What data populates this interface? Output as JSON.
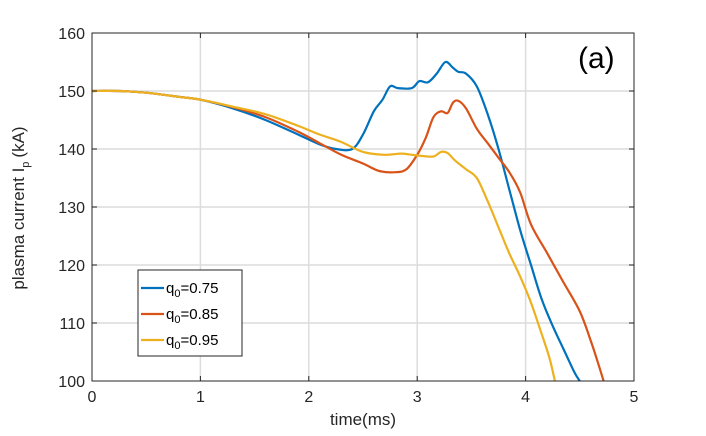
{
  "chart_data": {
    "type": "line",
    "panel_label": "(a)",
    "xlabel": "time(ms)",
    "ylabel_main": "plasma current I",
    "ylabel_sub": "p",
    "ylabel_unit": "(kA)",
    "xlim": [
      0,
      5
    ],
    "ylim": [
      100,
      160
    ],
    "x_ticks": [
      0,
      1,
      2,
      3,
      4,
      5
    ],
    "y_ticks": [
      100,
      110,
      120,
      130,
      140,
      150,
      160
    ],
    "grid": true,
    "legend_position": "bottom-left",
    "series": [
      {
        "name_main": "q",
        "name_sub": "0",
        "name_value": "=0.75",
        "color": "#0072BD",
        "points": [
          [
            0,
            150
          ],
          [
            0.25,
            150
          ],
          [
            0.5,
            149.7
          ],
          [
            0.8,
            149
          ],
          [
            1.0,
            148.5
          ],
          [
            1.3,
            147
          ],
          [
            1.6,
            145
          ],
          [
            1.9,
            142.5
          ],
          [
            2.1,
            140.8
          ],
          [
            2.25,
            140
          ],
          [
            2.4,
            140
          ],
          [
            2.5,
            142.5
          ],
          [
            2.6,
            146.5
          ],
          [
            2.68,
            148.5
          ],
          [
            2.75,
            150.8
          ],
          [
            2.82,
            150.5
          ],
          [
            2.95,
            150.5
          ],
          [
            3.02,
            151.7
          ],
          [
            3.1,
            151.5
          ],
          [
            3.18,
            153
          ],
          [
            3.26,
            155
          ],
          [
            3.33,
            154
          ],
          [
            3.38,
            153.3
          ],
          [
            3.45,
            153
          ],
          [
            3.55,
            150.8
          ],
          [
            3.65,
            146
          ],
          [
            3.75,
            140
          ],
          [
            3.85,
            133
          ],
          [
            3.95,
            126
          ],
          [
            4.05,
            120
          ],
          [
            4.15,
            114
          ],
          [
            4.25,
            109.5
          ],
          [
            4.35,
            105.5
          ],
          [
            4.45,
            101.5
          ],
          [
            4.5,
            100
          ]
        ]
      },
      {
        "name_main": "q",
        "name_sub": "0",
        "name_value": "=0.85",
        "color": "#D95319",
        "points": [
          [
            0,
            150
          ],
          [
            0.25,
            150
          ],
          [
            0.5,
            149.7
          ],
          [
            0.8,
            149
          ],
          [
            1.0,
            148.5
          ],
          [
            1.3,
            147.2
          ],
          [
            1.6,
            145.5
          ],
          [
            1.9,
            143
          ],
          [
            2.1,
            141
          ],
          [
            2.3,
            139
          ],
          [
            2.5,
            137.5
          ],
          [
            2.65,
            136.2
          ],
          [
            2.8,
            136
          ],
          [
            2.9,
            136.5
          ],
          [
            3.0,
            139
          ],
          [
            3.08,
            142
          ],
          [
            3.15,
            145.5
          ],
          [
            3.22,
            146.5
          ],
          [
            3.28,
            146.2
          ],
          [
            3.33,
            148
          ],
          [
            3.38,
            148.3
          ],
          [
            3.45,
            147
          ],
          [
            3.55,
            143.5
          ],
          [
            3.65,
            141
          ],
          [
            3.75,
            138.5
          ],
          [
            3.85,
            136
          ],
          [
            3.95,
            132.5
          ],
          [
            4.05,
            127
          ],
          [
            4.2,
            122
          ],
          [
            4.35,
            117
          ],
          [
            4.5,
            112
          ],
          [
            4.6,
            107
          ],
          [
            4.67,
            103
          ],
          [
            4.72,
            100
          ]
        ]
      },
      {
        "name_main": "q",
        "name_sub": "0",
        "name_value": "=0.95",
        "color": "#EDB120",
        "points": [
          [
            0,
            150
          ],
          [
            0.25,
            150
          ],
          [
            0.5,
            149.7
          ],
          [
            0.8,
            149
          ],
          [
            1.0,
            148.5
          ],
          [
            1.3,
            147.3
          ],
          [
            1.6,
            146
          ],
          [
            1.9,
            144
          ],
          [
            2.1,
            142.5
          ],
          [
            2.3,
            141.2
          ],
          [
            2.5,
            139.5
          ],
          [
            2.7,
            139
          ],
          [
            2.85,
            139.2
          ],
          [
            2.95,
            139
          ],
          [
            3.05,
            138.8
          ],
          [
            3.15,
            138.7
          ],
          [
            3.22,
            139.5
          ],
          [
            3.28,
            139.3
          ],
          [
            3.35,
            138
          ],
          [
            3.45,
            136.5
          ],
          [
            3.55,
            135
          ],
          [
            3.65,
            131
          ],
          [
            3.75,
            126.5
          ],
          [
            3.85,
            122
          ],
          [
            3.95,
            118
          ],
          [
            4.05,
            113.5
          ],
          [
            4.15,
            108
          ],
          [
            4.22,
            104
          ],
          [
            4.27,
            100
          ]
        ]
      }
    ]
  }
}
